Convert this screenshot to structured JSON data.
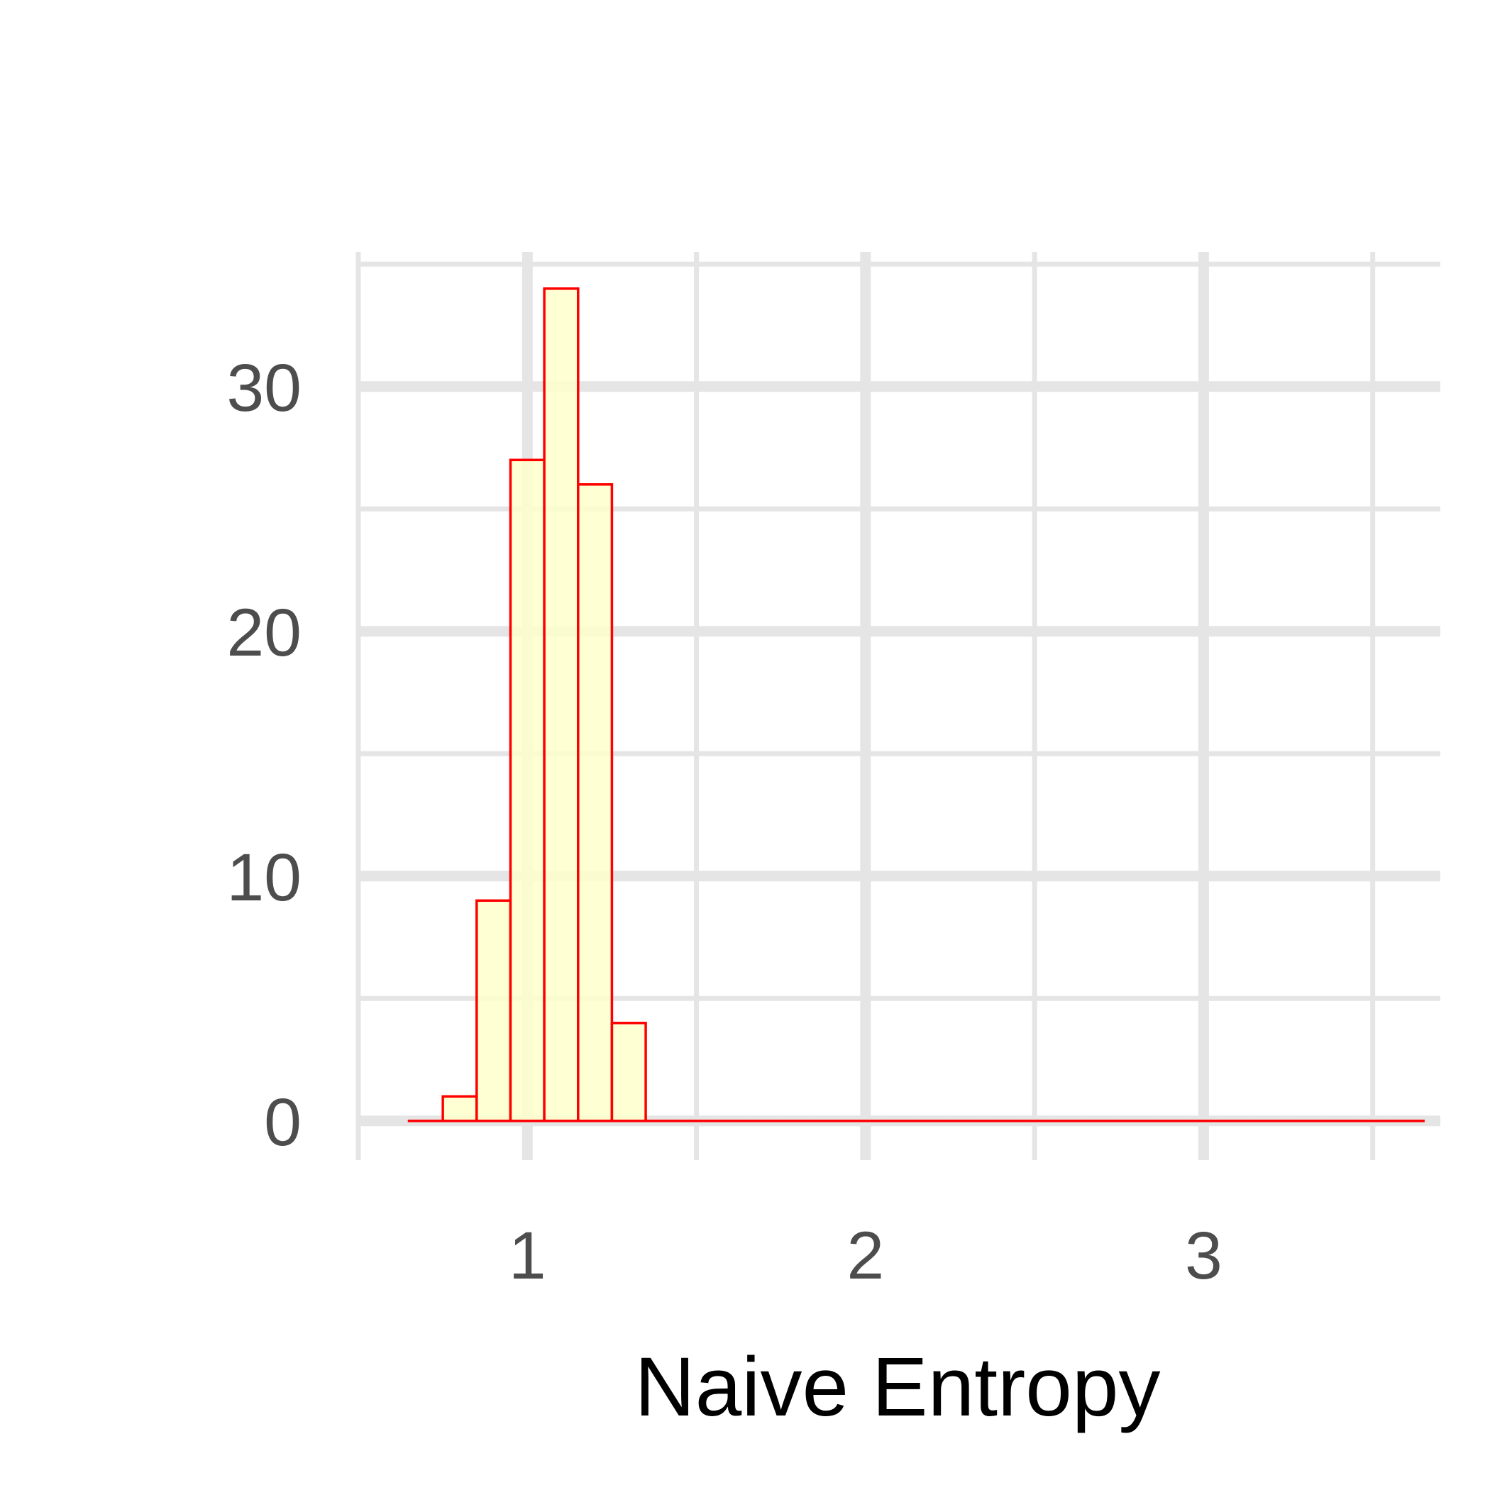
{
  "chart_data": {
    "type": "histogram",
    "xlabel": "Naive Entropy",
    "ylabel": "",
    "xlim": [
      0.5,
      3.7
    ],
    "ylim": [
      -1.6,
      35.5
    ],
    "x_major_ticks": [
      1,
      2,
      3
    ],
    "x_minor_ticks": [
      0.5,
      1.5,
      2.5,
      3.5
    ],
    "y_major_ticks": [
      0,
      10,
      20,
      30
    ],
    "y_minor_ticks": [
      5,
      15,
      25,
      35
    ],
    "grid": true,
    "legend": "none",
    "bin_width": 0.1,
    "bins": [
      {
        "x0": 0.65,
        "x1": 0.75,
        "count": 0
      },
      {
        "x0": 0.75,
        "x1": 0.85,
        "count": 1
      },
      {
        "x0": 0.85,
        "x1": 0.95,
        "count": 9
      },
      {
        "x0": 0.95,
        "x1": 1.05,
        "count": 27
      },
      {
        "x0": 1.05,
        "x1": 1.15,
        "count": 34
      },
      {
        "x0": 1.15,
        "x1": 1.25,
        "count": 26
      },
      {
        "x0": 1.25,
        "x1": 1.35,
        "count": 4
      },
      {
        "x0": 1.35,
        "x1": 1.45,
        "count": 0
      },
      {
        "x0": 1.45,
        "x1": 1.55,
        "count": 0
      },
      {
        "x0": 1.55,
        "x1": 1.65,
        "count": 0
      },
      {
        "x0": 1.65,
        "x1": 1.75,
        "count": 0
      },
      {
        "x0": 1.75,
        "x1": 1.85,
        "count": 0
      },
      {
        "x0": 1.85,
        "x1": 1.95,
        "count": 0
      },
      {
        "x0": 1.95,
        "x1": 2.05,
        "count": 0
      },
      {
        "x0": 2.05,
        "x1": 2.15,
        "count": 0
      },
      {
        "x0": 2.15,
        "x1": 2.25,
        "count": 0
      },
      {
        "x0": 2.25,
        "x1": 2.35,
        "count": 0
      },
      {
        "x0": 2.35,
        "x1": 2.45,
        "count": 0
      },
      {
        "x0": 2.45,
        "x1": 2.55,
        "count": 0
      },
      {
        "x0": 2.55,
        "x1": 2.65,
        "count": 0
      },
      {
        "x0": 2.65,
        "x1": 2.75,
        "count": 0
      },
      {
        "x0": 2.75,
        "x1": 2.85,
        "count": 0
      },
      {
        "x0": 2.85,
        "x1": 2.95,
        "count": 0
      },
      {
        "x0": 2.95,
        "x1": 3.05,
        "count": 0
      },
      {
        "x0": 3.05,
        "x1": 3.15,
        "count": 0
      },
      {
        "x0": 3.15,
        "x1": 3.25,
        "count": 0
      },
      {
        "x0": 3.25,
        "x1": 3.35,
        "count": 0
      },
      {
        "x0": 3.35,
        "x1": 3.45,
        "count": 0
      },
      {
        "x0": 3.45,
        "x1": 3.55,
        "count": 0
      },
      {
        "x0": 3.55,
        "x1": 3.65,
        "count": 0
      }
    ],
    "colors": {
      "bar_fill": "#ffffcc",
      "bar_stroke": "#ff0000",
      "grid": "#e5e5e5",
      "tick_text": "#4d4d4d",
      "title_text": "#000000"
    }
  }
}
